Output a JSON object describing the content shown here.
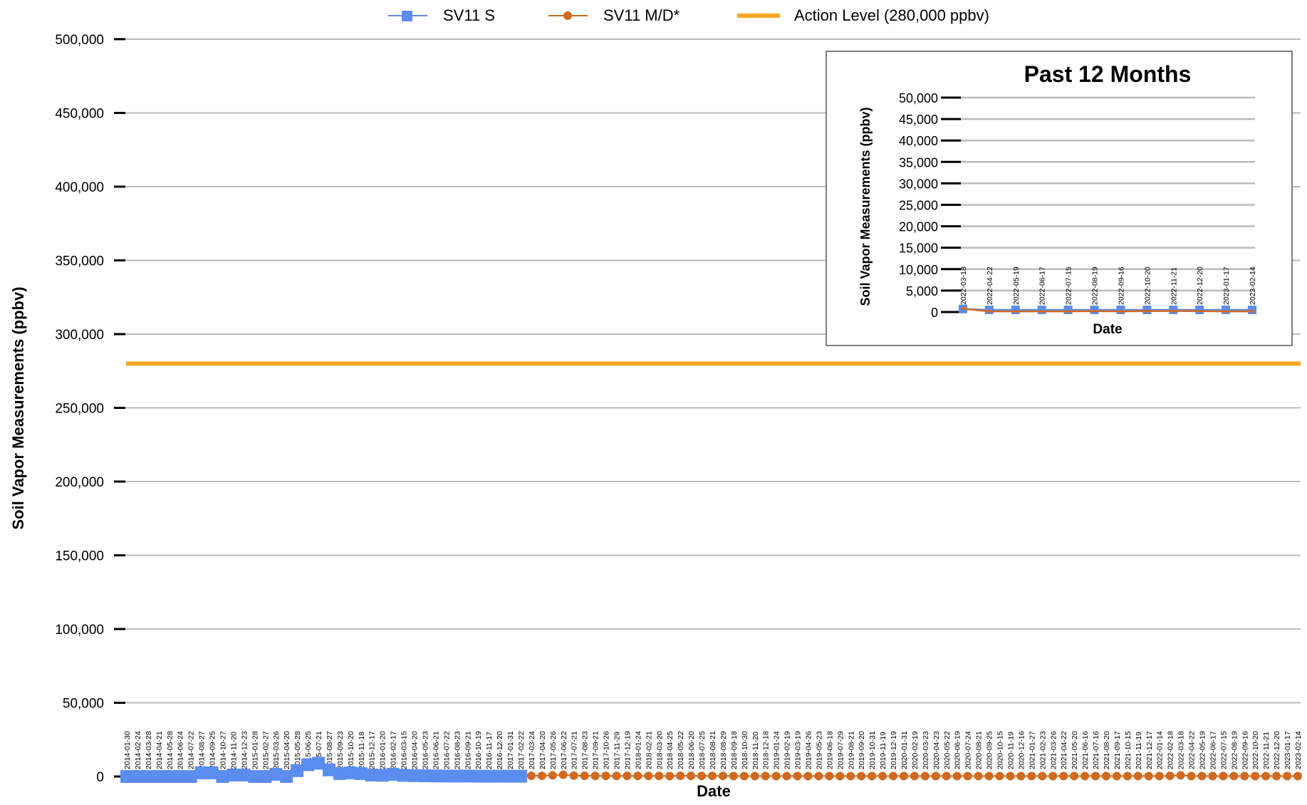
{
  "chart_data": {
    "type": "line",
    "title": "",
    "xlabel": "Date",
    "ylabel": "Soil Vapor Measurements (ppbv)",
    "ylim": [
      0,
      500000
    ],
    "y_ticks": [
      "0",
      "50,000",
      "100,000",
      "150,000",
      "200,000",
      "250,000",
      "300,000",
      "350,000",
      "400,000",
      "450,000",
      "500,000"
    ],
    "grid": true,
    "legend": {
      "placement": "top-center",
      "entries": [
        "SV11 S",
        "SV11 M/D*",
        "Action Level (280,000 ppbv)"
      ]
    },
    "action_level": {
      "label": "Action Level (280,000 ppbv)",
      "value": 280000,
      "color": "#f5a623"
    },
    "series": [
      {
        "name": "SV11 S",
        "color": "#5b8def",
        "marker": "square",
        "points": [
          [
            "2014-01-30",
            0
          ],
          [
            "2014-02-24",
            0
          ],
          [
            "2014-03-28",
            0
          ],
          [
            "2014-04-21",
            0
          ],
          [
            "2014-05-28",
            0
          ],
          [
            "2014-06-24",
            0
          ],
          [
            "2014-07-22",
            0
          ],
          [
            "2014-08-27",
            2500
          ],
          [
            "2014-09-25",
            2500
          ],
          [
            "2014-10-27",
            0
          ],
          [
            "2014-11-20",
            1000
          ],
          [
            "2014-12-23",
            1000
          ],
          [
            "2015-01-28",
            0
          ],
          [
            "2015-02-27",
            0
          ],
          [
            "2015-03-26",
            1500
          ],
          [
            "2015-04-20",
            0
          ],
          [
            "2015-05-28",
            4000
          ],
          [
            "2015-06-25",
            8000
          ],
          [
            "2015-07-21",
            9000
          ],
          [
            "2015-08-27",
            4500
          ],
          [
            "2015-09-23",
            2000
          ],
          [
            "2015-10-20",
            2500
          ],
          [
            "2015-11-18",
            2000
          ],
          [
            "2015-12-17",
            1000
          ],
          [
            "2016-01-20",
            800
          ],
          [
            "2016-02-17",
            1500
          ],
          [
            "2016-03-15",
            800
          ],
          [
            "2016-04-20",
            600
          ],
          [
            "2016-05-23",
            500
          ],
          [
            "2016-06-21",
            400
          ],
          [
            "2016-07-22",
            300
          ],
          [
            "2016-08-23",
            300
          ],
          [
            "2016-09-21",
            300
          ],
          [
            "2016-10-19",
            200
          ],
          [
            "2016-11-17",
            200
          ],
          [
            "2016-12-20",
            200
          ],
          [
            "2017-01-31",
            200
          ],
          [
            "2017-02-22",
            200
          ]
        ]
      },
      {
        "name": "SV11 M/D*",
        "color": "#d2691e",
        "marker": "circle",
        "points": [
          [
            "2017-03-24",
            500
          ],
          [
            "2017-04-20",
            500
          ],
          [
            "2017-05-26",
            800
          ],
          [
            "2017-06-22",
            1200
          ],
          [
            "2017-07-21",
            600
          ],
          [
            "2017-08-23",
            500
          ],
          [
            "2017-09-21",
            400
          ],
          [
            "2017-10-26",
            400
          ],
          [
            "2017-11-29",
            400
          ],
          [
            "2017-12-19",
            400
          ],
          [
            "2018-01-24",
            400
          ],
          [
            "2018-02-21",
            400
          ],
          [
            "2018-03-20",
            400
          ],
          [
            "2018-04-25",
            300
          ],
          [
            "2018-05-22",
            500
          ],
          [
            "2018-06-20",
            400
          ],
          [
            "2018-07-25",
            400
          ],
          [
            "2018-08-21",
            400
          ],
          [
            "2018-08-29",
            400
          ],
          [
            "2018-09-18",
            300
          ],
          [
            "2018-10-30",
            300
          ],
          [
            "2018-11-20",
            300
          ],
          [
            "2018-12-18",
            300
          ],
          [
            "2019-01-24",
            300
          ],
          [
            "2019-02-19",
            300
          ],
          [
            "2019-03-19",
            300
          ],
          [
            "2019-04-26",
            300
          ],
          [
            "2019-05-23",
            300
          ],
          [
            "2019-06-18",
            300
          ],
          [
            "2019-07-29",
            300
          ],
          [
            "2019-08-21",
            300
          ],
          [
            "2019-09-20",
            300
          ],
          [
            "2019-10-31",
            300
          ],
          [
            "2019-11-19",
            300
          ],
          [
            "2019-12-19",
            300
          ],
          [
            "2020-01-31",
            300
          ],
          [
            "2020-02-19",
            300
          ],
          [
            "2020-03-23",
            300
          ],
          [
            "2020-04-23",
            300
          ],
          [
            "2020-05-22",
            300
          ],
          [
            "2020-06-19",
            300
          ],
          [
            "2020-07-24",
            300
          ],
          [
            "2020-08-21",
            300
          ],
          [
            "2020-09-25",
            300
          ],
          [
            "2020-10-15",
            300
          ],
          [
            "2020-11-19",
            300
          ],
          [
            "2020-12-16",
            300
          ],
          [
            "2021-01-27",
            300
          ],
          [
            "2021-02-23",
            300
          ],
          [
            "2021-03-26",
            300
          ],
          [
            "2021-04-22",
            300
          ],
          [
            "2021-05-20",
            300
          ],
          [
            "2021-06-16",
            300
          ],
          [
            "2021-07-16",
            300
          ],
          [
            "2021-08-20",
            300
          ],
          [
            "2021-09-17",
            300
          ],
          [
            "2021-10-15",
            300
          ],
          [
            "2021-11-19",
            300
          ],
          [
            "2021-12-17",
            300
          ],
          [
            "2022-01-14",
            300
          ],
          [
            "2022-02-18",
            400
          ],
          [
            "2022-03-18",
            800
          ],
          [
            "2022-04-22",
            300
          ],
          [
            "2022-05-19",
            300
          ],
          [
            "2022-06-17",
            300
          ],
          [
            "2022-07-15",
            300
          ],
          [
            "2022-08-19",
            300
          ],
          [
            "2022-09-16",
            300
          ],
          [
            "2022-10-20",
            300
          ],
          [
            "2022-11-21",
            300
          ],
          [
            "2022-12-20",
            300
          ],
          [
            "2023-01-17",
            300
          ],
          [
            "2023-02-14",
            300
          ]
        ]
      }
    ],
    "inset": {
      "type": "line",
      "title": "Past 12 Months",
      "xlabel": "Date",
      "ylabel": "Soil Vapor Measurements (ppbv)",
      "ylim": [
        0,
        50000
      ],
      "y_ticks": [
        "0",
        "5,000",
        "10,000",
        "15,000",
        "20,000",
        "25,000",
        "30,000",
        "35,000",
        "40,000",
        "45,000",
        "50,000"
      ],
      "grid": true,
      "series": [
        {
          "name": "SV11 S",
          "color": "#5b8def",
          "marker": "square",
          "points": [
            [
              "2022-03-18",
              700
            ],
            [
              "2022-04-22",
              500
            ],
            [
              "2022-05-19",
              500
            ],
            [
              "2022-06-17",
              500
            ],
            [
              "2022-07-15",
              500
            ],
            [
              "2022-08-19",
              500
            ],
            [
              "2022-09-16",
              500
            ],
            [
              "2022-10-20",
              500
            ],
            [
              "2022-11-21",
              500
            ],
            [
              "2022-12-20",
              500
            ],
            [
              "2023-01-17",
              500
            ],
            [
              "2023-02-14",
              500
            ]
          ]
        },
        {
          "name": "SV11 M/D*",
          "color": "#d2691e",
          "marker": "circle",
          "points": [
            [
              "2022-03-18",
              800
            ],
            [
              "2022-04-22",
              150
            ],
            [
              "2022-05-19",
              150
            ],
            [
              "2022-06-17",
              150
            ],
            [
              "2022-07-15",
              150
            ],
            [
              "2022-08-19",
              200
            ],
            [
              "2022-09-16",
              150
            ],
            [
              "2022-10-20",
              200
            ],
            [
              "2022-11-21",
              250
            ],
            [
              "2022-12-20",
              200
            ],
            [
              "2023-01-17",
              150
            ],
            [
              "2023-02-14",
              150
            ]
          ]
        }
      ]
    }
  }
}
